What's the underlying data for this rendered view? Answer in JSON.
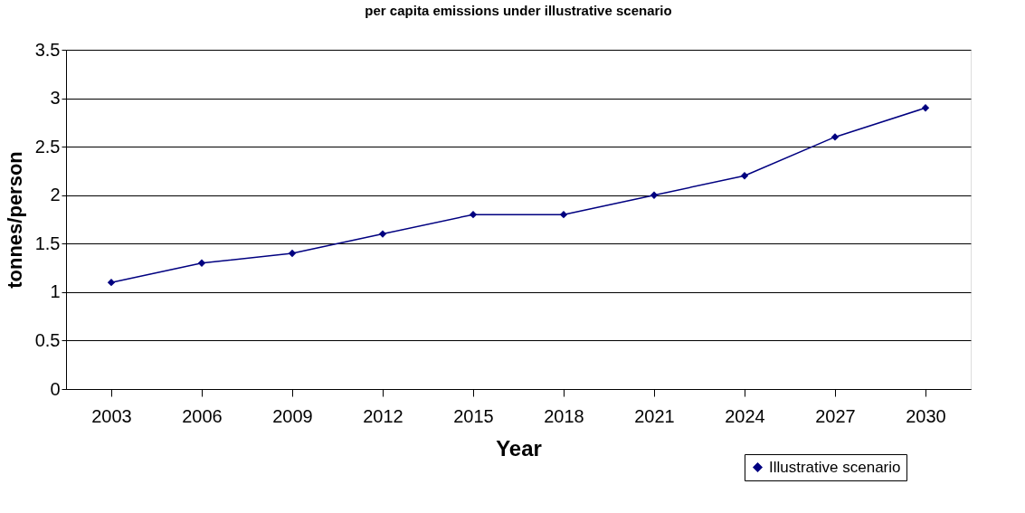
{
  "chart_data": {
    "type": "line",
    "title": "per capita emissions under illustrative scenario",
    "xlabel": "Year",
    "ylabel": "tonnes/person",
    "categories": [
      "2003",
      "2006",
      "2009",
      "2012",
      "2015",
      "2018",
      "2021",
      "2024",
      "2027",
      "2030"
    ],
    "series": [
      {
        "name": "Illustrative scenario",
        "color": "#000080",
        "values": [
          1.1,
          1.3,
          1.4,
          1.6,
          1.8,
          1.8,
          2.0,
          2.2,
          2.6,
          2.9
        ]
      }
    ],
    "ylim": [
      0,
      3.5
    ],
    "yticks": [
      0,
      0.5,
      1,
      1.5,
      2,
      2.5,
      3,
      3.5
    ],
    "grid": "y",
    "legend": "bottom right",
    "marker": "diamond",
    "line_style": "solid"
  }
}
